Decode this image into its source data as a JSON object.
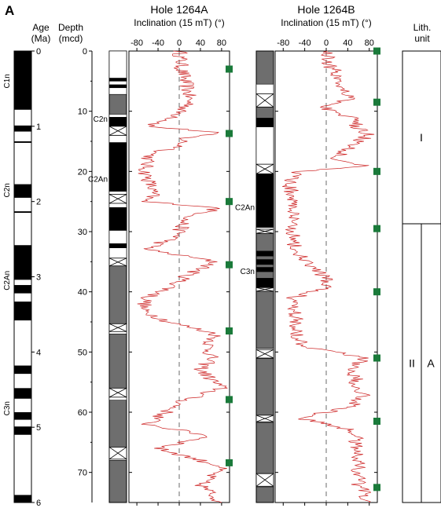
{
  "panel_label": "A",
  "age_scale": {
    "label_line1": "Age",
    "label_line2": "(Ma)",
    "ticks": [
      0,
      1,
      2,
      3,
      4,
      5,
      6
    ],
    "chron_labels": [
      {
        "text": "C1n",
        "age": 0.4
      },
      {
        "text": "C2n",
        "age": 1.85
      },
      {
        "text": "C2An",
        "age": 3.05
      },
      {
        "text": "C3n",
        "age": 4.75
      }
    ],
    "normal_intervals": [
      [
        0,
        0.78
      ],
      [
        0.99,
        1.07
      ],
      [
        1.2,
        1.22
      ],
      [
        1.77,
        1.95
      ],
      [
        2.13,
        2.15
      ],
      [
        2.58,
        3.04
      ],
      [
        3.11,
        3.22
      ],
      [
        3.33,
        3.58
      ],
      [
        4.18,
        4.29
      ],
      [
        4.48,
        4.62
      ],
      [
        4.8,
        4.9
      ],
      [
        4.99,
        5.1
      ],
      [
        5.9,
        6.0
      ]
    ]
  },
  "depth_axis": {
    "label_line1": "Depth",
    "label_line2": "(mcd)",
    "ticks": [
      0,
      10,
      20,
      30,
      40,
      50,
      60,
      70
    ],
    "min": 0,
    "max": 75
  },
  "chart_data": {
    "type": "line",
    "x_axis_label": "Inclination (15 mT) (°)",
    "y_axis_label": "Depth (mcd)",
    "xlim": [
      -95,
      95
    ],
    "x_ticks": [
      -80,
      -40,
      0,
      40,
      80
    ],
    "ylim": [
      0,
      75
    ],
    "series": [
      {
        "name": "Hole 1264A",
        "points": [
          [
            1,
            0
          ],
          [
            4,
            3
          ],
          [
            15,
            6
          ],
          [
            20,
            9
          ],
          [
            0,
            10
          ],
          [
            -5,
            11
          ],
          [
            -40,
            12
          ],
          [
            -60,
            12.5
          ],
          [
            70,
            13.5
          ],
          [
            10,
            14.5
          ],
          [
            0,
            16
          ],
          [
            -50,
            17
          ],
          [
            -60,
            18
          ],
          [
            -65,
            20
          ],
          [
            -55,
            22
          ],
          [
            -50,
            24
          ],
          [
            -70,
            25
          ],
          [
            75,
            26
          ],
          [
            10,
            28
          ],
          [
            0,
            30
          ],
          [
            -5,
            31
          ],
          [
            -40,
            32
          ],
          [
            -60,
            33
          ],
          [
            70,
            35
          ],
          [
            20,
            37
          ],
          [
            -10,
            39
          ],
          [
            -60,
            41
          ],
          [
            -70,
            43
          ],
          [
            -20,
            45
          ],
          [
            70,
            47
          ],
          [
            55,
            49
          ],
          [
            60,
            51
          ],
          [
            40,
            53
          ],
          [
            80,
            56
          ],
          [
            10,
            58
          ],
          [
            -60,
            62
          ],
          [
            60,
            64
          ],
          [
            -40,
            66
          ],
          [
            80,
            69
          ],
          [
            40,
            72
          ],
          [
            80,
            75
          ]
        ]
      },
      {
        "name": "Hole 1264B",
        "points": [
          [
            2,
            0
          ],
          [
            5,
            2
          ],
          [
            20,
            4
          ],
          [
            30,
            6
          ],
          [
            50,
            8
          ],
          [
            -5,
            9
          ],
          [
            10,
            10
          ],
          [
            45,
            11
          ],
          [
            60,
            13
          ],
          [
            80,
            14
          ],
          [
            40,
            16
          ],
          [
            20,
            18
          ],
          [
            75,
            19
          ],
          [
            -50,
            20
          ],
          [
            -70,
            22
          ],
          [
            -60,
            25
          ],
          [
            -65,
            28
          ],
          [
            -60,
            31
          ],
          [
            -60,
            33
          ],
          [
            -40,
            35
          ],
          [
            -10,
            37
          ],
          [
            5,
            39
          ],
          [
            -60,
            41
          ],
          [
            -55,
            44
          ],
          [
            -55,
            47
          ],
          [
            -40,
            49
          ],
          [
            70,
            51
          ],
          [
            50,
            53
          ],
          [
            55,
            55
          ],
          [
            70,
            57
          ],
          [
            50,
            59
          ],
          [
            -50,
            61
          ],
          [
            50,
            63
          ],
          [
            60,
            66
          ],
          [
            60,
            69
          ],
          [
            60,
            72
          ],
          [
            80,
            75
          ]
        ]
      }
    ],
    "markers": {
      "Hole 1264A": [
        3,
        13.7,
        25,
        35.5,
        46.5,
        57.9,
        68.4
      ],
      "Hole 1264B": [
        0,
        8.5,
        20,
        29.5,
        40,
        51,
        61.5,
        72.5
      ]
    }
  },
  "hole_a": {
    "title": "Hole 1264A",
    "axis_label": "Inclination (15 mT) (°)",
    "chron_labels": [
      {
        "text": "C2n",
        "depth": 11.2
      },
      {
        "text": "C2An",
        "depth": 21.2
      }
    ],
    "core_column": {
      "white_intervals": [
        [
          0,
          4.5
        ],
        [
          5,
          5.6
        ],
        [
          6.1,
          7.2
        ],
        [
          10.5,
          11
        ],
        [
          14,
          15.2
        ],
        [
          23.3,
          26
        ],
        [
          29.8,
          32
        ],
        [
          32.7,
          34.5
        ],
        [
          45.5,
          47
        ],
        [
          56,
          58
        ],
        [
          66,
          68
        ]
      ],
      "black_intervals": [
        [
          4.5,
          5
        ],
        [
          5.6,
          6.1
        ],
        [
          11,
          14
        ],
        [
          15.2,
          23.3
        ],
        [
          26,
          29.8
        ],
        [
          32,
          32.7
        ]
      ],
      "gap_intervals": [
        [
          12.5,
          14
        ],
        [
          23.8,
          25.3
        ],
        [
          34.4,
          35.7
        ],
        [
          45.3,
          46.6
        ],
        [
          56,
          57.5
        ],
        [
          65.8,
          67.8
        ]
      ]
    }
  },
  "hole_b": {
    "title": "Hole 1264B",
    "axis_label": "Inclination (15 mT) (°)",
    "chron_labels": [
      {
        "text": "C2An",
        "depth": 25.9
      },
      {
        "text": "C3n",
        "depth": 36.5
      }
    ],
    "core_column": {
      "white_intervals": [
        [
          5.5,
          9.3
        ],
        [
          12.6,
          20.4
        ],
        [
          29.3,
          30.3
        ],
        [
          39.3,
          39.9
        ],
        [
          49.4,
          51.1
        ],
        [
          60.5,
          61.7
        ],
        [
          70.2,
          72.4
        ]
      ],
      "black_intervals": [
        [
          11.1,
          12.6
        ],
        [
          20.4,
          29.3
        ],
        [
          33.2,
          34.1
        ],
        [
          34.6,
          35.5
        ],
        [
          35.9,
          36.7
        ],
        [
          37.7,
          39.3
        ]
      ],
      "gap_intervals": [
        [
          7.1,
          9.3
        ],
        [
          18.8,
          20.4
        ],
        [
          29.6,
          30.3
        ],
        [
          39.3,
          39.9
        ],
        [
          49.6,
          51
        ],
        [
          60.5,
          61.6
        ],
        [
          70.2,
          72.3
        ]
      ]
    }
  },
  "lith": {
    "header_line1": "Lith.",
    "header_line2": "unit",
    "unit_i": "I",
    "unit_ii": "II",
    "subunit_a": "A",
    "boundary_depth": 28.7
  },
  "colors": {
    "trace": "#cc1f1f",
    "marker": "#1a7a3a",
    "core_gray": "#6e6e6e",
    "black": "#000000"
  }
}
